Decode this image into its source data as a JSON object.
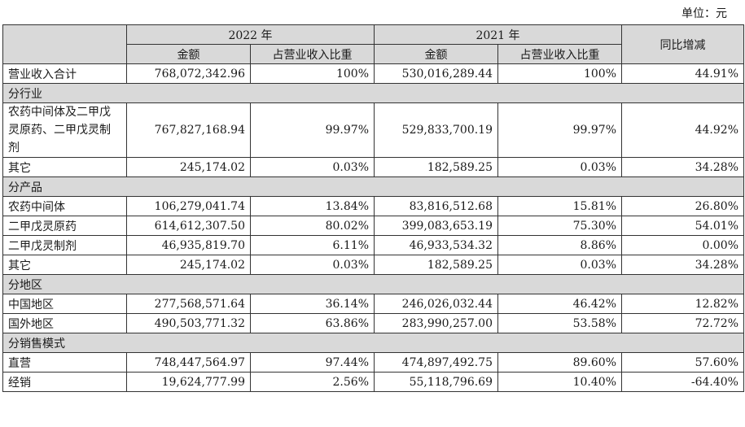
{
  "unit_label": "单位：元",
  "headers": {
    "year_a": "2022 年",
    "year_b": "2021 年",
    "amount": "金额",
    "share": "占营业收入比重",
    "yoy": "同比增减"
  },
  "total": {
    "label": "营业收入合计",
    "a_amount": "768,072,342.96",
    "a_share": "100%",
    "b_amount": "530,016,289.44",
    "b_share": "100%",
    "yoy": "44.91%"
  },
  "sections": [
    {
      "title": "分行业",
      "rows": [
        {
          "label": "农药中间体及二甲戊灵原药、二甲戊灵制剂",
          "a_amount": "767,827,168.94",
          "a_share": "99.97%",
          "b_amount": "529,833,700.19",
          "b_share": "99.97%",
          "yoy": "44.92%"
        },
        {
          "label": "其它",
          "a_amount": "245,174.02",
          "a_share": "0.03%",
          "b_amount": "182,589.25",
          "b_share": "0.03%",
          "yoy": "34.28%"
        }
      ]
    },
    {
      "title": "分产品",
      "rows": [
        {
          "label": "农药中间体",
          "a_amount": "106,279,041.74",
          "a_share": "13.84%",
          "b_amount": "83,816,512.68",
          "b_share": "15.81%",
          "yoy": "26.80%"
        },
        {
          "label": "二甲戊灵原药",
          "a_amount": "614,612,307.50",
          "a_share": "80.02%",
          "b_amount": "399,083,653.19",
          "b_share": "75.30%",
          "yoy": "54.01%"
        },
        {
          "label": "二甲戊灵制剂",
          "a_amount": "46,935,819.70",
          "a_share": "6.11%",
          "b_amount": "46,933,534.32",
          "b_share": "8.86%",
          "yoy": "0.00%"
        },
        {
          "label": "其它",
          "a_amount": "245,174.02",
          "a_share": "0.03%",
          "b_amount": "182,589.25",
          "b_share": "0.03%",
          "yoy": "34.28%"
        }
      ]
    },
    {
      "title": "分地区",
      "rows": [
        {
          "label": "中国地区",
          "a_amount": "277,568,571.64",
          "a_share": "36.14%",
          "b_amount": "246,026,032.44",
          "b_share": "46.42%",
          "yoy": "12.82%"
        },
        {
          "label": "国外地区",
          "a_amount": "490,503,771.32",
          "a_share": "63.86%",
          "b_amount": "283,990,257.00",
          "b_share": "53.58%",
          "yoy": "72.72%"
        }
      ]
    },
    {
      "title": "分销售模式",
      "rows": [
        {
          "label": "直营",
          "a_amount": "748,447,564.97",
          "a_share": "97.44%",
          "b_amount": "474,897,492.75",
          "b_share": "89.60%",
          "yoy": "57.60%"
        },
        {
          "label": "经销",
          "a_amount": "19,624,777.99",
          "a_share": "2.56%",
          "b_amount": "55,118,796.69",
          "b_share": "10.40%",
          "yoy": "-64.40%"
        }
      ]
    }
  ]
}
